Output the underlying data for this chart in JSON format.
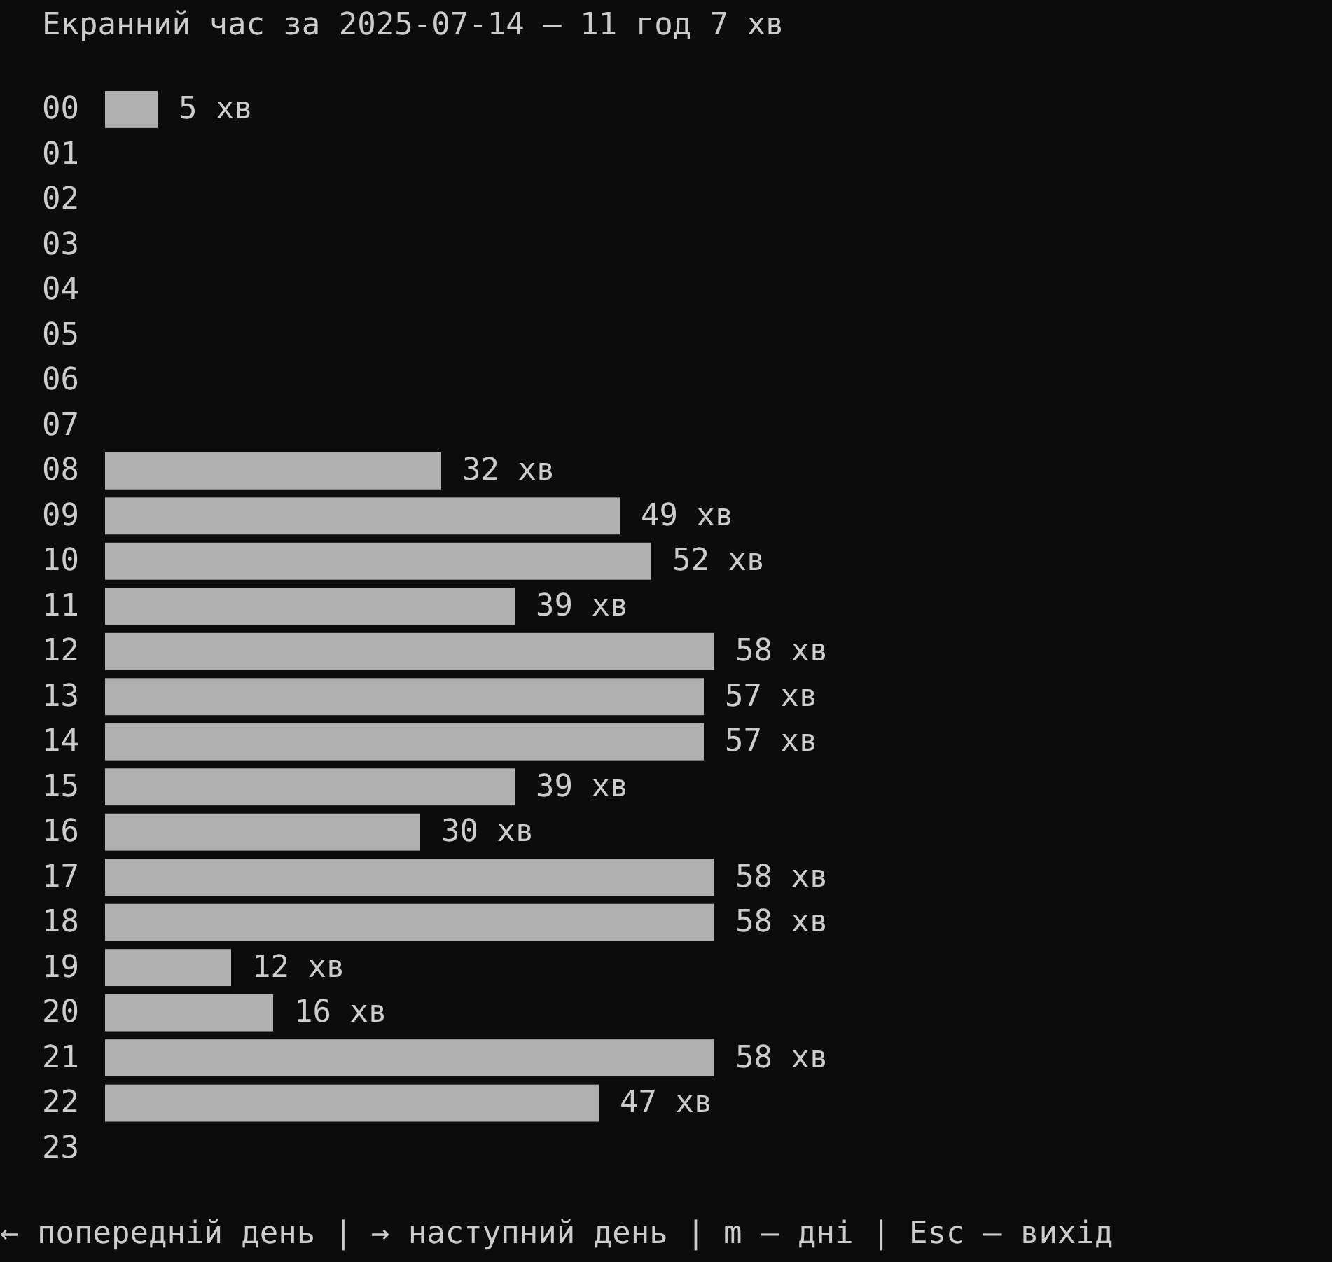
{
  "chart_data": {
    "type": "bar",
    "orientation": "horizontal",
    "title": "Екранний час за 2025-07-14 — 11 год 7 хв",
    "categories": [
      "00",
      "01",
      "02",
      "03",
      "04",
      "05",
      "06",
      "07",
      "08",
      "09",
      "10",
      "11",
      "12",
      "13",
      "14",
      "15",
      "16",
      "17",
      "18",
      "19",
      "20",
      "21",
      "22",
      "23"
    ],
    "values": [
      5,
      null,
      null,
      null,
      null,
      null,
      null,
      null,
      32,
      49,
      52,
      39,
      58,
      57,
      57,
      39,
      30,
      58,
      58,
      12,
      16,
      58,
      47,
      null
    ],
    "value_labels": [
      "5 хв",
      null,
      null,
      null,
      null,
      null,
      null,
      null,
      "32 хв",
      "49 хв",
      "52 хв",
      "39 хв",
      "58 хв",
      "57 хв",
      "57 хв",
      "39 хв",
      "30 хв",
      "58 хв",
      "58 хв",
      "12 хв",
      "16 хв",
      "58 хв",
      "47 хв",
      null
    ],
    "color": "#b0b0b0",
    "annotations": [
      "← попередній день | → наступний день | m — дні | Esc — вихід"
    ]
  }
}
